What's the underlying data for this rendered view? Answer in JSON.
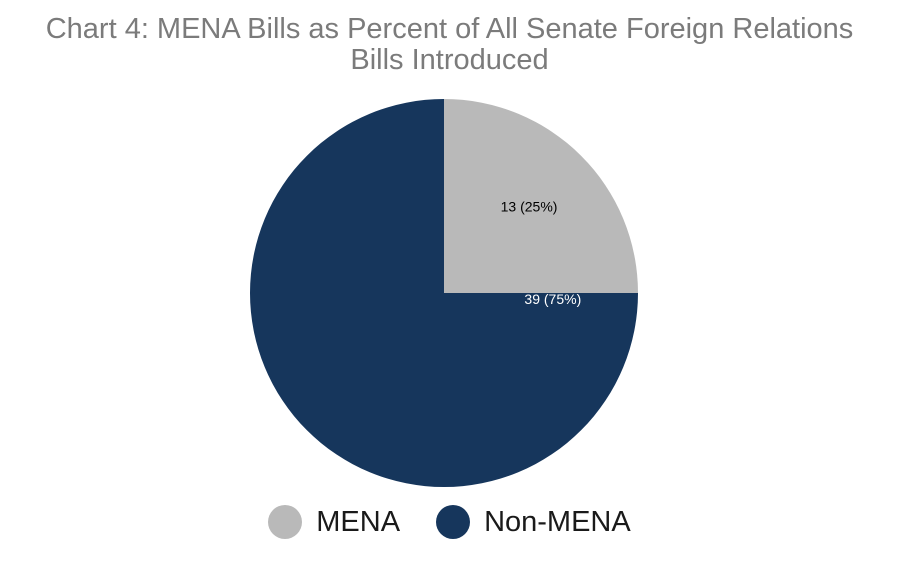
{
  "chart_data": {
    "type": "pie",
    "title_lines": [
      "Chart 4: MENA Bills as Percent of All Senate Foreign Relations",
      "Bills Introduced"
    ],
    "slices": [
      {
        "name": "MENA",
        "value": 13,
        "percent": 25,
        "label": "13 (25%)",
        "color": "#b9b9b9",
        "label_color": "#000000"
      },
      {
        "name": "Non-MENA",
        "value": 39,
        "percent": 75,
        "label": "39 (75%)",
        "color": "#16365c",
        "label_color": "#ffffff"
      }
    ],
    "start_angle": "12 o'clock",
    "direction": "clockwise",
    "legend_position": "bottom"
  }
}
